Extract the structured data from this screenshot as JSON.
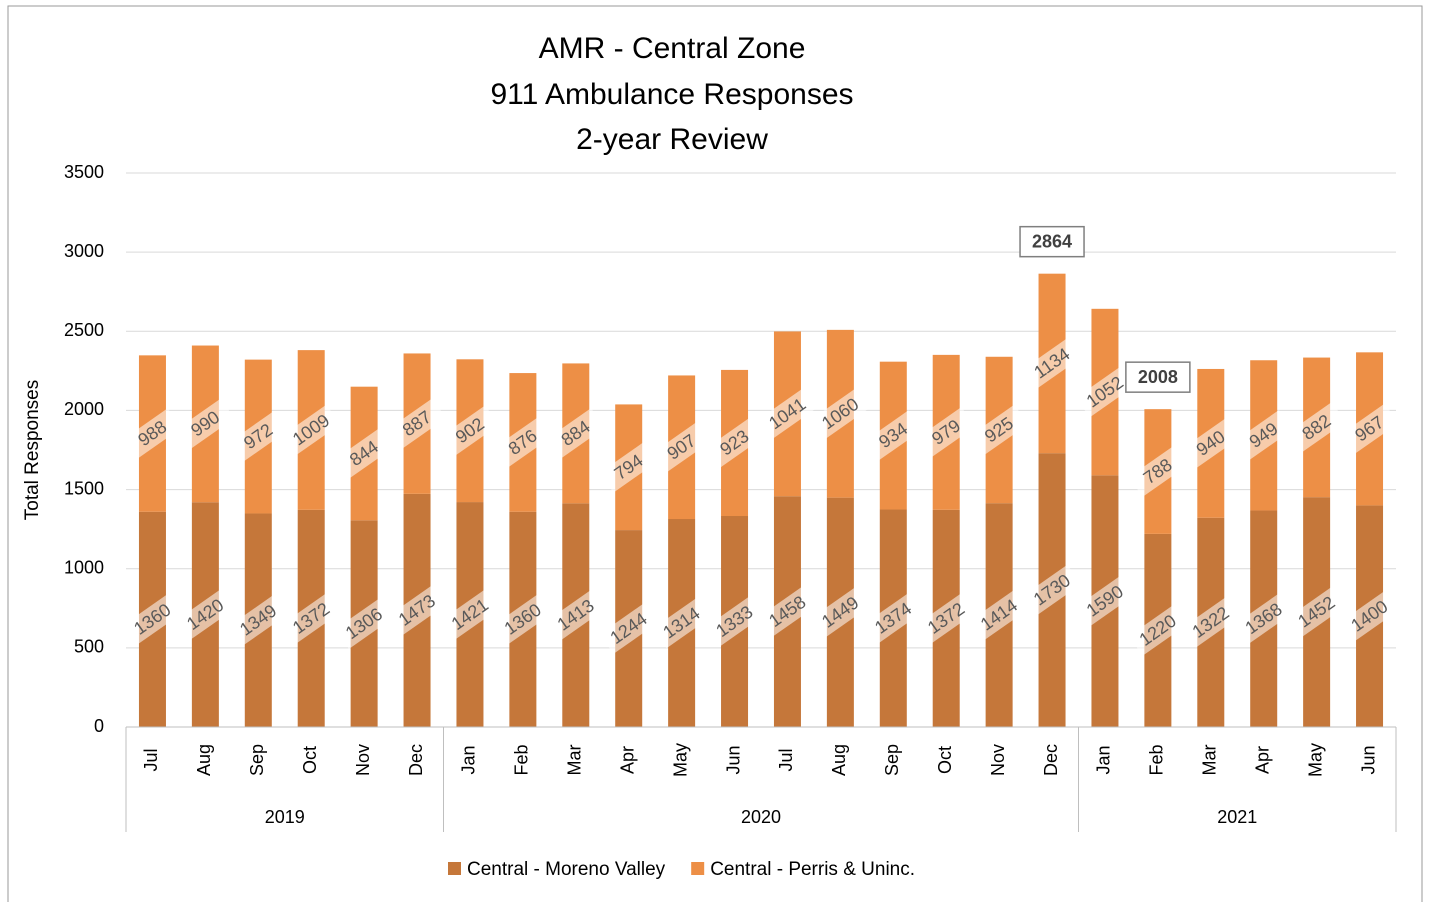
{
  "chart_data": {
    "type": "stacked_bar",
    "title": [
      "AMR - Central Zone",
      "911 Ambulance Responses",
      "2-year Review"
    ],
    "ylabel": "Total Responses",
    "groups": [
      {
        "name": "2019",
        "categories": [
          "Jul",
          "Aug",
          "Sep",
          "Oct",
          "Nov",
          "Dec"
        ]
      },
      {
        "name": "2020",
        "categories": [
          "Jan",
          "Feb",
          "Mar",
          "Apr",
          "May",
          "Jun",
          "Jul",
          "Aug",
          "Sep",
          "Oct",
          "Nov",
          "Dec"
        ]
      },
      {
        "name": "2021",
        "categories": [
          "Jan",
          "Feb",
          "Mar",
          "Apr",
          "May",
          "Jun"
        ]
      }
    ],
    "series": [
      {
        "name": "Central - Moreno Valley",
        "color": "#c5773a",
        "values": [
          1360,
          1420,
          1349,
          1372,
          1306,
          1473,
          1421,
          1360,
          1413,
          1244,
          1314,
          1333,
          1458,
          1449,
          1374,
          1372,
          1414,
          1730,
          1590,
          1220,
          1322,
          1368,
          1452,
          1400
        ]
      },
      {
        "name": "Central - Perris & Uninc.",
        "color": "#ed8f46",
        "values": [
          988,
          990,
          972,
          1009,
          844,
          887,
          902,
          876,
          884,
          794,
          907,
          923,
          1041,
          1060,
          934,
          979,
          925,
          1134,
          1052,
          788,
          940,
          949,
          882,
          967
        ]
      }
    ],
    "annotations": [
      {
        "value": 2864
      },
      {
        "value": 2008
      }
    ],
    "ylim": [
      0,
      3500
    ],
    "yticks": [
      0,
      500,
      1000,
      1500,
      2000,
      2500,
      3000,
      3500
    ],
    "grid": true,
    "legend": "bottom"
  }
}
